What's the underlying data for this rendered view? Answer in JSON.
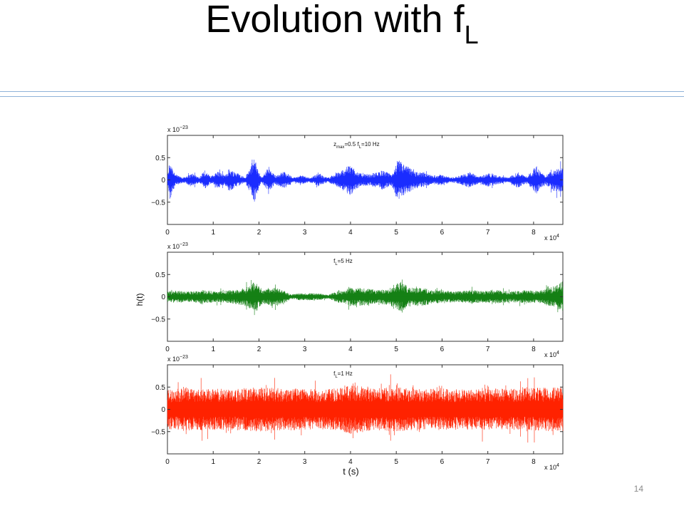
{
  "slide": {
    "title_main": "Evolution with f",
    "title_sub": "L",
    "page_number": "14"
  },
  "chart_data": [
    {
      "type": "line",
      "color": "#1a2cff",
      "label_parts": [
        "z",
        "max",
        "=0.5 f",
        "L",
        "=10 Hz"
      ],
      "ylabel": "",
      "xlabel": "",
      "xlim": [
        0,
        8.64
      ],
      "ylim": [
        -1,
        1
      ],
      "x_ticks": [
        0,
        1,
        2,
        3,
        4,
        5,
        6,
        7,
        8
      ],
      "y_ticks": [
        0.5,
        0,
        -0.5
      ],
      "y_tick_labels": [
        "0.5",
        "0",
        "−0.5"
      ],
      "y_exponent_label": "x 10",
      "y_exponent": "−23",
      "x_exponent_label": "x 10",
      "x_exponent": "4",
      "amplitude_envelope": [
        [
          0.0,
          0.05
        ],
        [
          0.05,
          0.45
        ],
        [
          0.18,
          0.12
        ],
        [
          0.35,
          0.06
        ],
        [
          0.55,
          0.15
        ],
        [
          0.7,
          0.05
        ],
        [
          0.8,
          0.22
        ],
        [
          0.95,
          0.08
        ],
        [
          1.1,
          0.2
        ],
        [
          1.25,
          0.1
        ],
        [
          1.35,
          0.25
        ],
        [
          1.55,
          0.15
        ],
        [
          1.7,
          0.05
        ],
        [
          1.9,
          0.5
        ],
        [
          2.05,
          0.05
        ],
        [
          2.2,
          0.28
        ],
        [
          2.35,
          0.1
        ],
        [
          2.55,
          0.2
        ],
        [
          2.75,
          0.05
        ],
        [
          2.95,
          0.1
        ],
        [
          3.1,
          0.05
        ],
        [
          3.3,
          0.14
        ],
        [
          3.5,
          0.05
        ],
        [
          3.75,
          0.18
        ],
        [
          4.0,
          0.35
        ],
        [
          4.2,
          0.15
        ],
        [
          4.45,
          0.12
        ],
        [
          4.7,
          0.22
        ],
        [
          4.9,
          0.12
        ],
        [
          5.05,
          0.45
        ],
        [
          5.25,
          0.3
        ],
        [
          5.4,
          0.2
        ],
        [
          5.6,
          0.15
        ],
        [
          5.8,
          0.1
        ],
        [
          6.0,
          0.12
        ],
        [
          6.2,
          0.05
        ],
        [
          6.4,
          0.1
        ],
        [
          6.6,
          0.18
        ],
        [
          6.8,
          0.08
        ],
        [
          7.0,
          0.15
        ],
        [
          7.2,
          0.1
        ],
        [
          7.45,
          0.05
        ],
        [
          7.65,
          0.18
        ],
        [
          7.85,
          0.08
        ],
        [
          8.05,
          0.3
        ],
        [
          8.25,
          0.1
        ],
        [
          8.45,
          0.25
        ],
        [
          8.64,
          0.28
        ]
      ]
    },
    {
      "type": "line",
      "color": "#158015",
      "label_parts": [
        "f",
        "L",
        "=5 Hz"
      ],
      "ylabel": "h(t)",
      "xlabel": "",
      "xlim": [
        0,
        8.64
      ],
      "ylim": [
        -1,
        1
      ],
      "x_ticks": [
        0,
        1,
        2,
        3,
        4,
        5,
        6,
        7,
        8
      ],
      "y_ticks": [
        0.5,
        0,
        -0.5
      ],
      "y_tick_labels": [
        "0.5",
        "0",
        "−0.5"
      ],
      "y_exponent_label": "x 10",
      "y_exponent": "−23",
      "x_exponent_label": "x 10",
      "x_exponent": "4",
      "amplitude_envelope": [
        [
          0.0,
          0.12
        ],
        [
          0.2,
          0.14
        ],
        [
          0.5,
          0.12
        ],
        [
          0.8,
          0.15
        ],
        [
          1.1,
          0.12
        ],
        [
          1.4,
          0.15
        ],
        [
          1.7,
          0.2
        ],
        [
          1.9,
          0.35
        ],
        [
          2.1,
          0.15
        ],
        [
          2.3,
          0.22
        ],
        [
          2.55,
          0.14
        ],
        [
          2.7,
          0.05
        ],
        [
          2.9,
          0.08
        ],
        [
          3.1,
          0.08
        ],
        [
          3.35,
          0.07
        ],
        [
          3.5,
          0.04
        ],
        [
          3.7,
          0.12
        ],
        [
          4.0,
          0.2
        ],
        [
          4.3,
          0.2
        ],
        [
          4.6,
          0.15
        ],
        [
          4.9,
          0.22
        ],
        [
          5.1,
          0.35
        ],
        [
          5.3,
          0.2
        ],
        [
          5.55,
          0.22
        ],
        [
          5.8,
          0.14
        ],
        [
          6.0,
          0.15
        ],
        [
          6.3,
          0.12
        ],
        [
          6.6,
          0.15
        ],
        [
          6.9,
          0.13
        ],
        [
          7.2,
          0.15
        ],
        [
          7.5,
          0.12
        ],
        [
          7.8,
          0.15
        ],
        [
          8.1,
          0.13
        ],
        [
          8.4,
          0.22
        ],
        [
          8.64,
          0.35
        ]
      ]
    },
    {
      "type": "line",
      "color": "#ff2200",
      "label_parts": [
        "f",
        "L",
        "=1 Hz"
      ],
      "ylabel": "",
      "xlabel": "t (s)",
      "xlim": [
        0,
        8.64
      ],
      "ylim": [
        -1,
        1
      ],
      "x_ticks": [
        0,
        1,
        2,
        3,
        4,
        5,
        6,
        7,
        8
      ],
      "y_ticks": [
        0.5,
        0,
        -0.5
      ],
      "y_tick_labels": [
        "0.5",
        "0",
        "−0.5"
      ],
      "y_exponent_label": "x 10",
      "y_exponent": "−23",
      "x_exponent_label": "x 10",
      "x_exponent": "4",
      "amplitude_envelope": [
        [
          0.0,
          0.45
        ],
        [
          0.5,
          0.48
        ],
        [
          1.0,
          0.46
        ],
        [
          1.5,
          0.47
        ],
        [
          2.0,
          0.5
        ],
        [
          2.5,
          0.48
        ],
        [
          3.0,
          0.46
        ],
        [
          3.5,
          0.45
        ],
        [
          4.0,
          0.55
        ],
        [
          4.5,
          0.48
        ],
        [
          5.0,
          0.5
        ],
        [
          5.5,
          0.46
        ],
        [
          6.0,
          0.48
        ],
        [
          6.5,
          0.45
        ],
        [
          7.0,
          0.47
        ],
        [
          7.5,
          0.46
        ],
        [
          8.0,
          0.48
        ],
        [
          8.64,
          0.5
        ]
      ]
    }
  ]
}
